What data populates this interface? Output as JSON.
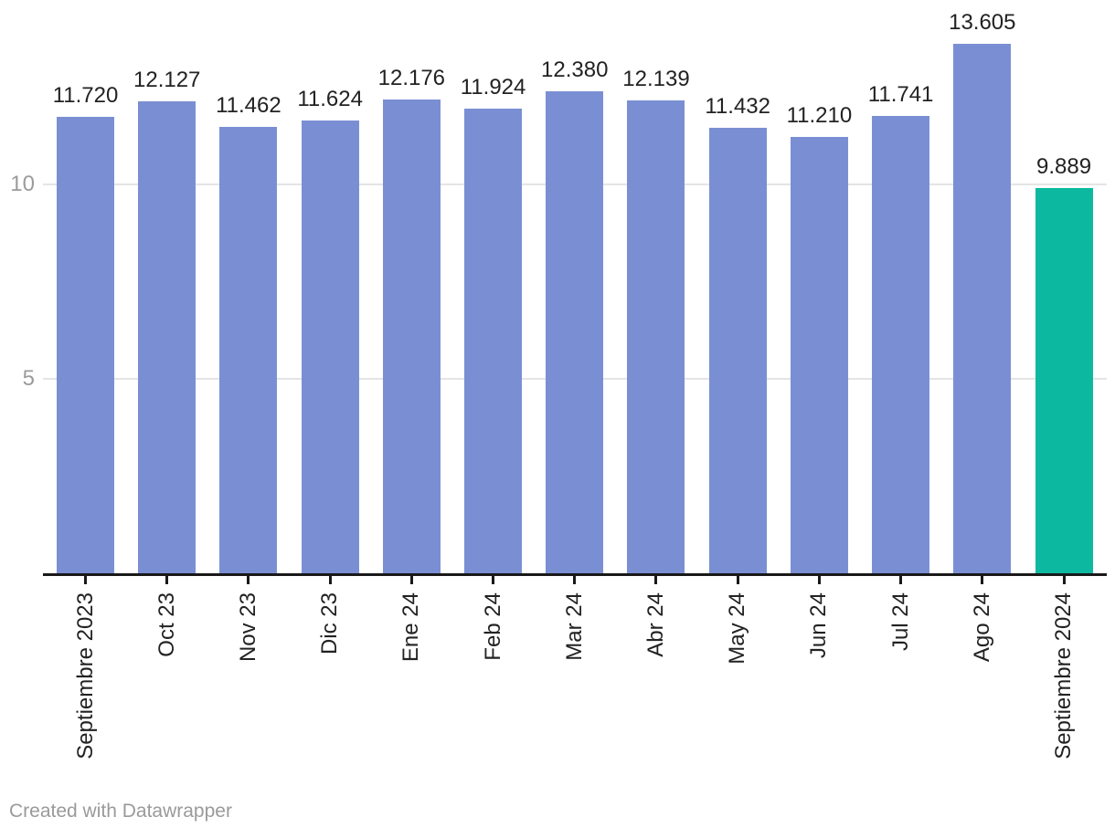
{
  "chart_data": {
    "type": "bar",
    "categories": [
      "Septiembre 2023",
      "Oct 23",
      "Nov 23",
      "Dic 23",
      "Ene 24",
      "Feb 24",
      "Mar 24",
      "Abr 24",
      "May 24",
      "Jun 24",
      "Jul 24",
      "Ago 24",
      "Septiembre 2024"
    ],
    "values": [
      11720,
      12127,
      11462,
      11624,
      12176,
      11924,
      12380,
      12139,
      11432,
      11210,
      11741,
      13605,
      9889
    ],
    "value_labels": [
      "11.720",
      "12.127",
      "11.462",
      "11.624",
      "12.176",
      "11.924",
      "12.380",
      "12.139",
      "11.432",
      "11.210",
      "11.741",
      "13.605",
      "9.889"
    ],
    "title": "",
    "xlabel": "",
    "ylabel": "",
    "ylim": [
      0,
      13630
    ],
    "yticks": [
      {
        "value": 5000,
        "label": "5"
      },
      {
        "value": 10000,
        "label": "10"
      }
    ],
    "grid": "horizontal",
    "legend": "none",
    "bar_color": "#7A8FD3",
    "highlight_color": "#0CB9A0",
    "highlight_index": 12,
    "colors": {
      "axis_line": "#191919",
      "tick_mark": "#191919",
      "gridline": "#e4e4e4",
      "y_tick_label": "#9b9b9b",
      "data_label": "#222222",
      "category_label": "#222222"
    }
  },
  "footer": {
    "credit": "Created with Datawrapper"
  }
}
